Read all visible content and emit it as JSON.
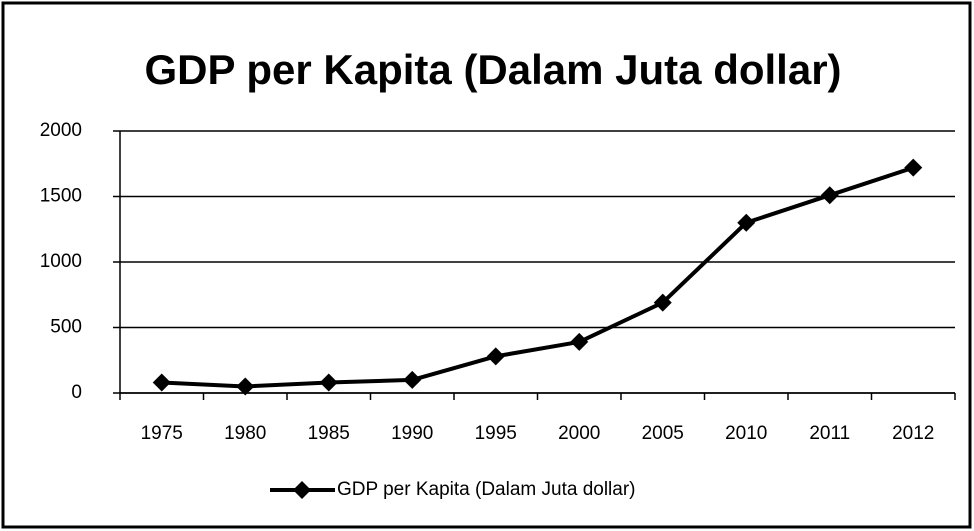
{
  "chart_data": {
    "type": "line",
    "title": "GDP per Kapita (Dalam Juta dollar)",
    "categories": [
      "1975",
      "1980",
      "1985",
      "1990",
      "1995",
      "2000",
      "2005",
      "2010",
      "2011",
      "2012"
    ],
    "series": [
      {
        "name": "GDP per Kapita (Dalam Juta dollar)",
        "color": "#000000",
        "values": [
          80,
          50,
          80,
          100,
          280,
          390,
          690,
          1300,
          1510,
          1720
        ]
      }
    ],
    "ylim": [
      0,
      2000
    ],
    "yticks": [
      0,
      500,
      1000,
      1500,
      2000
    ],
    "grid": true,
    "legend": "bottom"
  }
}
